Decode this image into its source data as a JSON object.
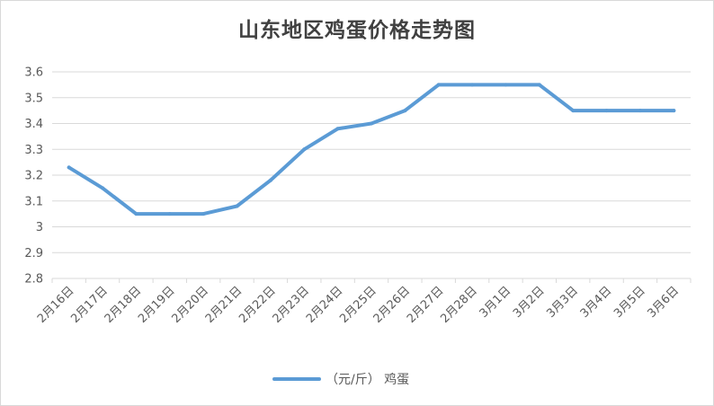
{
  "chart_data": {
    "type": "line",
    "title": "山东地区鸡蛋价格走势图",
    "xlabel": "",
    "ylabel": "",
    "categories": [
      "2月16日",
      "2月17日",
      "2月18日",
      "2月19日",
      "2月20日",
      "2月21日",
      "2月22日",
      "2月23日",
      "2月24日",
      "2月25日",
      "2月26日",
      "2月27日",
      "2月28日",
      "3月1日",
      "3月2日",
      "3月3日",
      "3月4日",
      "3月5日",
      "3月6日"
    ],
    "series": [
      {
        "name": "（元/斤） 鸡蛋",
        "color": "#5b9bd5",
        "values": [
          3.23,
          3.15,
          3.05,
          3.05,
          3.05,
          3.08,
          3.18,
          3.3,
          3.38,
          3.4,
          3.45,
          3.55,
          3.55,
          3.55,
          3.55,
          3.45,
          3.45,
          3.45,
          3.45
        ]
      }
    ],
    "ylim": [
      2.8,
      3.6
    ],
    "yticks": [
      "2.8",
      "2.9",
      "3",
      "3.1",
      "3.2",
      "3.3",
      "3.4",
      "3.5",
      "3.6"
    ],
    "grid": true,
    "legend_position": "bottom"
  }
}
